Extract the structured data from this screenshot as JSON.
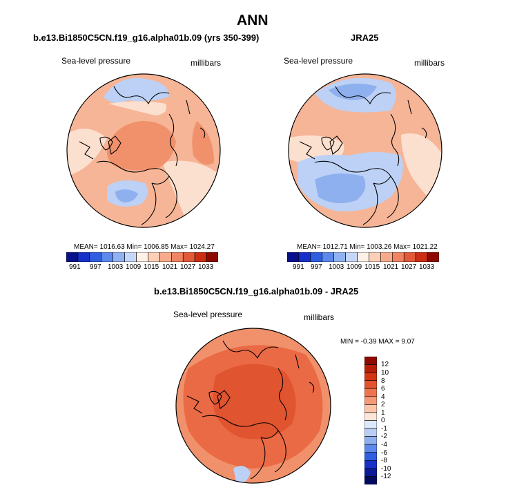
{
  "main_title": "ANN",
  "colors": {
    "palette": [
      "#08108a",
      "#1630c8",
      "#2f5fe0",
      "#5d88ec",
      "#91b2f2",
      "#c5d7f8",
      "#fff1e7",
      "#fccfb6",
      "#f7ab8a",
      "#f08462",
      "#e35a39",
      "#cc2e14",
      "#8e0a00"
    ],
    "mid_red": "#f0916b",
    "light_red": "#f6b596",
    "pale_red": "#fce0cf",
    "light_blue": "#bcd1f5",
    "mid_blue": "#8fb0ee",
    "diff_red": "#ea6a45",
    "diff_dark_red": "#e0542f"
  },
  "chart_data": [
    {
      "type": "heatmap",
      "projection": "polar-stereographic",
      "title": "b.e13.Bi1850C5CN.f19_g16.alpha01b.09 (yrs 350-399)",
      "variable_label": "Sea-level pressure",
      "units_label": "millibars",
      "stats_text": "MEAN= 1016.63  Min= 1006.85  Max= 1024.27",
      "stats": {
        "mean": 1016.63,
        "min": 1006.85,
        "max": 1024.27
      },
      "colorbar_levels": [
        "991",
        "997",
        "1003",
        "1009",
        "1015",
        "1021",
        "1027",
        "1033"
      ]
    },
    {
      "type": "heatmap",
      "projection": "polar-stereographic",
      "title": "JRA25",
      "variable_label": "Sea-level pressure",
      "units_label": "millibars",
      "stats_text": "MEAN= 1012.71  Min= 1003.26  Max= 1021.22",
      "stats": {
        "mean": 1012.71,
        "min": 1003.26,
        "max": 1021.22
      },
      "colorbar_levels": [
        "991",
        "997",
        "1003",
        "1009",
        "1015",
        "1021",
        "1027",
        "1033"
      ]
    },
    {
      "type": "heatmap",
      "projection": "polar-stereographic",
      "title": "b.e13.Bi1850C5CN.f19_g16.alpha01b.09 - JRA25",
      "variable_label": "Sea-level pressure",
      "units_label": "millibars",
      "stats_text": "MIN =  -0.39 MAX =   9.07",
      "stats": {
        "min": -0.39,
        "max": 9.07
      },
      "colorbar_levels": [
        "12",
        "10",
        "8",
        "6",
        "4",
        "2",
        "1",
        "0",
        "-1",
        "-2",
        "-4",
        "-6",
        "-8",
        "-10",
        "-12"
      ],
      "colorbar_colors": [
        "#8e0a00",
        "#b81d07",
        "#d23512",
        "#e3522f",
        "#ee7450",
        "#f59a78",
        "#fbc5a9",
        "#fde6d7",
        "#dce8fb",
        "#b8cef5",
        "#8fb0ee",
        "#5d88ec",
        "#2f5fe0",
        "#1630c8",
        "#0a1a96",
        "#020a5e"
      ]
    }
  ]
}
